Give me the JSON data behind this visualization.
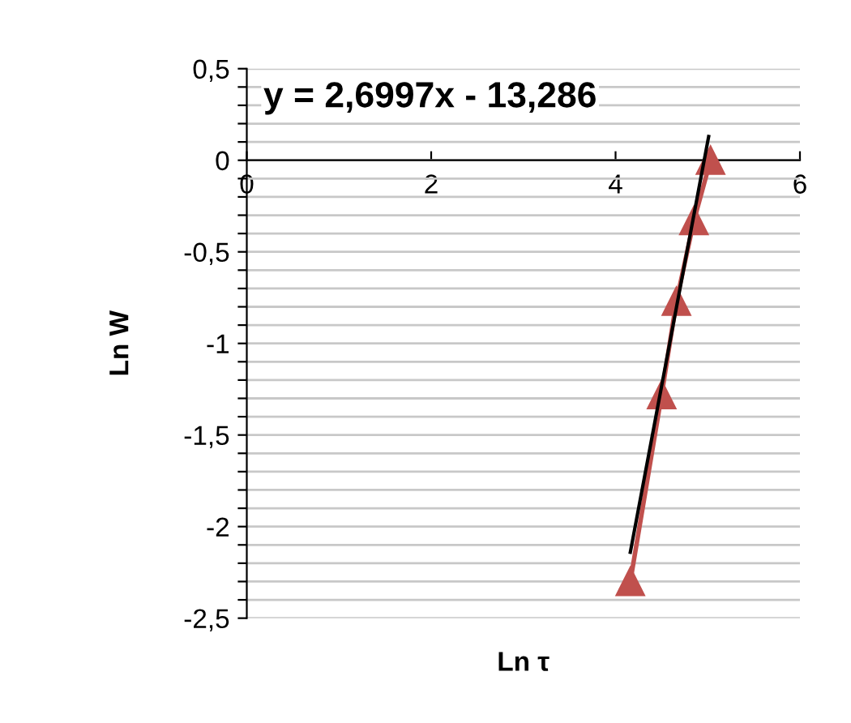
{
  "chart_data": {
    "type": "line",
    "xlabel": "Ln τ",
    "ylabel": "Ln W",
    "annotations": [
      "y = 2,6997x - 13,286"
    ],
    "xlim": [
      0,
      6
    ],
    "ylim": [
      -2.5,
      0.5
    ],
    "xticks": [
      0,
      2,
      4,
      6
    ],
    "yticks": [
      {
        "value": -2.5,
        "label": "-2,5"
      },
      {
        "value": -2.4,
        "label": null
      },
      {
        "value": -2.3,
        "label": null
      },
      {
        "value": -2.2,
        "label": null
      },
      {
        "value": -2.1,
        "label": null
      },
      {
        "value": -2,
        "label": "-2"
      },
      {
        "value": -1.9,
        "label": null
      },
      {
        "value": -1.8,
        "label": null
      },
      {
        "value": -1.7,
        "label": null
      },
      {
        "value": -1.6,
        "label": null
      },
      {
        "value": -1.5,
        "label": "-1,5"
      },
      {
        "value": -1.4,
        "label": null
      },
      {
        "value": -1.3,
        "label": null
      },
      {
        "value": -1.2,
        "label": null
      },
      {
        "value": -1.1,
        "label": null
      },
      {
        "value": -1,
        "label": "-1"
      },
      {
        "value": -0.9,
        "label": null
      },
      {
        "value": -0.8,
        "label": null
      },
      {
        "value": -0.7,
        "label": null
      },
      {
        "value": -0.6,
        "label": null
      },
      {
        "value": -0.5,
        "label": "-0,5"
      },
      {
        "value": -0.4,
        "label": null
      },
      {
        "value": -0.3,
        "label": null
      },
      {
        "value": -0.2,
        "label": null
      },
      {
        "value": -0.1,
        "label": null
      },
      {
        "value": 0,
        "label": "0"
      },
      {
        "value": 0.1,
        "label": null
      },
      {
        "value": 0.2,
        "label": null
      },
      {
        "value": 0.3,
        "label": null
      },
      {
        "value": 0.4,
        "label": null
      },
      {
        "value": 0.5,
        "label": "0,5"
      }
    ],
    "grid": "y",
    "marker": "triangle",
    "line_style": "solid",
    "series": [
      {
        "color": "#c0504d",
        "x": [
          4.16,
          4.5,
          4.66,
          4.85,
          5.03
        ],
        "values": [
          -2.3,
          -1.28,
          -0.77,
          -0.33,
          0.0
        ]
      },
      {
        "color": "#000000",
        "marker": "none",
        "x": [
          4.16,
          5.01
        ],
        "values": [
          -2.14,
          0.13
        ]
      }
    ]
  }
}
